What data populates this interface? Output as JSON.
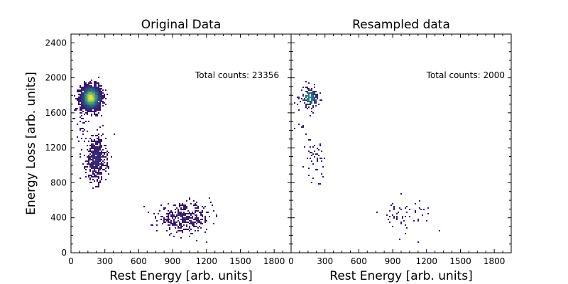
{
  "chart_data": [
    {
      "type": "heatmap",
      "title": "Original Data",
      "xlabel": "Rest Energy [arb. units]",
      "ylabel": "Energy Loss [arb. units]",
      "xlim": [
        0,
        1950
      ],
      "ylim": [
        0,
        2500
      ],
      "xticks": [
        0,
        300,
        600,
        900,
        1200,
        1500,
        1800
      ],
      "yticks": [
        0,
        400,
        800,
        1200,
        1600,
        2000,
        2400
      ],
      "annotation": "Total counts: 23356",
      "clusters": [
        {
          "cx": 170,
          "cy": 1780,
          "sx": 45,
          "sy": 70,
          "n": 2200,
          "peak": 1.0
        },
        {
          "cx": 215,
          "cy": 1080,
          "sx": 45,
          "sy": 130,
          "n": 500,
          "peak": 0.12
        },
        {
          "cx": 1000,
          "cy": 400,
          "sx": 120,
          "sy": 80,
          "n": 380,
          "peak": 0.08
        },
        {
          "cx": 90,
          "cy": 1450,
          "sx": 25,
          "sy": 80,
          "n": 25,
          "peak": 0.05
        }
      ]
    },
    {
      "type": "heatmap",
      "title": "Resampled data",
      "xlabel": "Rest Energy [arb. units]",
      "ylabel": "",
      "xlim": [
        0,
        1950
      ],
      "ylim": [
        0,
        2500
      ],
      "xticks": [
        0,
        300,
        600,
        900,
        1200,
        1500,
        1800
      ],
      "yticks": [
        0,
        400,
        800,
        1200,
        1600,
        2000,
        2400
      ],
      "annotation": "Total counts: 2000",
      "clusters": [
        {
          "cx": 160,
          "cy": 1780,
          "sx": 40,
          "sy": 60,
          "n": 160,
          "peak": 0.5
        },
        {
          "cx": 210,
          "cy": 1080,
          "sx": 40,
          "sy": 120,
          "n": 45,
          "peak": 0.08
        },
        {
          "cx": 1000,
          "cy": 440,
          "sx": 120,
          "sy": 90,
          "n": 55,
          "peak": 0.06
        },
        {
          "cx": 90,
          "cy": 1450,
          "sx": 25,
          "sy": 80,
          "n": 6,
          "peak": 0.05
        }
      ]
    }
  ],
  "colors": {
    "low": "#3b0f70",
    "mid": "#21918c",
    "high": "#fde725"
  }
}
